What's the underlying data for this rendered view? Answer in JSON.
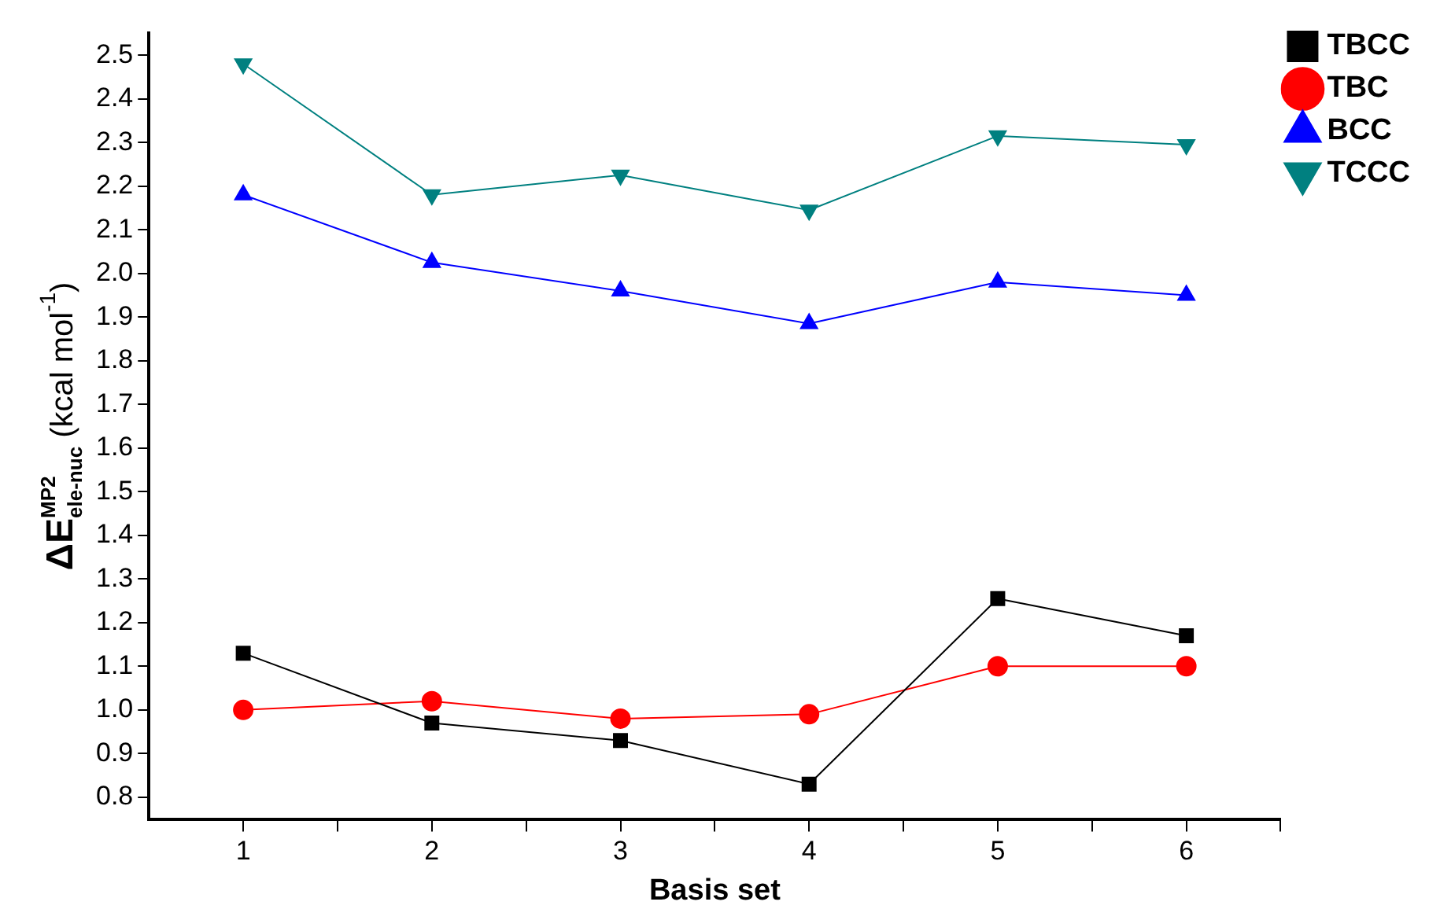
{
  "chart_data": {
    "type": "line",
    "xlabel": "Basis set",
    "ylabel": "ΔE$^{MP2}$$_{ele-nuc}$ (kcal mol$^{-1}$)",
    "x": [
      1,
      2,
      3,
      4,
      5,
      6
    ],
    "xlim": [
      0.5,
      6.5
    ],
    "xticks": [
      1,
      {
        "value": 1.5,
        "label": null
      },
      2,
      {
        "value": 2.5,
        "label": null
      },
      3,
      {
        "value": 3.5,
        "label": null
      },
      4,
      {
        "value": 4.5,
        "label": null
      },
      5,
      {
        "value": 5.5,
        "label": null
      },
      6,
      {
        "value": 6.5,
        "label": null
      }
    ],
    "ylim": [
      0.75,
      2.55
    ],
    "yticks": [
      {
        "value": 0.8,
        "label": "0.8"
      },
      {
        "value": 0.9,
        "label": "0.9"
      },
      {
        "value": 1.0,
        "label": "1.0"
      },
      {
        "value": 1.1,
        "label": "1.1"
      },
      {
        "value": 1.2,
        "label": "1.2"
      },
      {
        "value": 1.3,
        "label": "1.3"
      },
      {
        "value": 1.4,
        "label": "1.4"
      },
      {
        "value": 1.5,
        "label": "1.5"
      },
      {
        "value": 1.6,
        "label": "1.6"
      },
      {
        "value": 1.7,
        "label": "1.7"
      },
      {
        "value": 1.8,
        "label": "1.8"
      },
      {
        "value": 1.9,
        "label": "1.9"
      },
      {
        "value": 2.0,
        "label": "2.0"
      },
      {
        "value": 2.1,
        "label": "2.1"
      },
      {
        "value": 2.2,
        "label": "2.2"
      },
      {
        "value": 2.3,
        "label": "2.3"
      },
      {
        "value": 2.4,
        "label": "2.4"
      },
      {
        "value": 2.5,
        "label": "2.5"
      }
    ],
    "grid": false,
    "legend": "top right",
    "line_style": "solid",
    "series": [
      {
        "name": "TBCC",
        "color": "#000000",
        "marker": "square",
        "values": [
          1.13,
          0.97,
          0.93,
          0.83,
          1.255,
          1.17
        ]
      },
      {
        "name": "TBC",
        "color": "#ff0000",
        "marker": "circle",
        "values": [
          1.0,
          1.02,
          0.98,
          0.99,
          1.1,
          1.1
        ]
      },
      {
        "name": "BCC",
        "color": "#0000ff",
        "marker": "triangle",
        "values": [
          2.18,
          2.025,
          1.96,
          1.885,
          1.98,
          1.95
        ]
      },
      {
        "name": "TCCC",
        "color": "#008080",
        "marker": "triangle-down",
        "values": [
          2.48,
          2.18,
          2.225,
          2.145,
          2.315,
          2.295
        ]
      }
    ]
  }
}
